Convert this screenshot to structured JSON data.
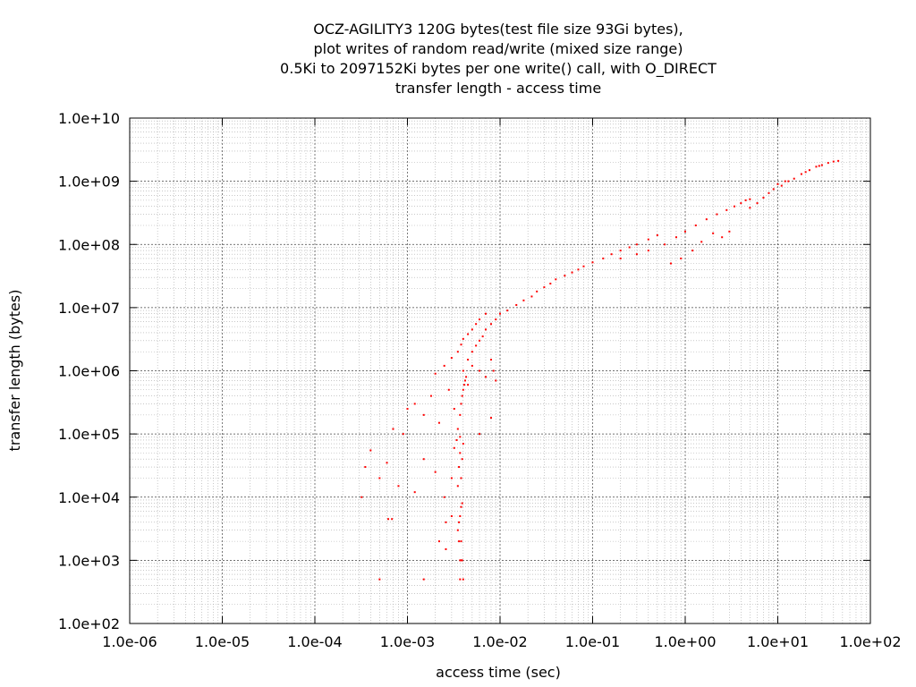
{
  "chart_data": {
    "type": "scatter",
    "title_lines": [
      "OCZ-AGILITY3 120G bytes(test file size 93Gi bytes),",
      "plot writes of random read/write (mixed size range)",
      "0.5Ki to 2097152Ki bytes per one write() call, with O_DIRECT",
      "transfer length - access time"
    ],
    "xlabel": "access time (sec)",
    "ylabel": "transfer length (bytes)",
    "xscale": "log",
    "yscale": "log",
    "xlim": [
      1e-06,
      100
    ],
    "ylim": [
      100,
      10000000000.0
    ],
    "x_ticks": [
      {
        "value": 1e-06,
        "label": "1.0e-06"
      },
      {
        "value": 1e-05,
        "label": "1.0e-05"
      },
      {
        "value": 0.0001,
        "label": "1.0e-04"
      },
      {
        "value": 0.001,
        "label": "1.0e-03"
      },
      {
        "value": 0.01,
        "label": "1.0e-02"
      },
      {
        "value": 0.1,
        "label": "1.0e-01"
      },
      {
        "value": 1,
        "label": "1.0e+00"
      },
      {
        "value": 10,
        "label": "1.0e+01"
      },
      {
        "value": 100,
        "label": "1.0e+02"
      }
    ],
    "y_ticks": [
      {
        "value": 100.0,
        "label": "1.0e+02"
      },
      {
        "value": 1000.0,
        "label": "1.0e+03"
      },
      {
        "value": 10000.0,
        "label": "1.0e+04"
      },
      {
        "value": 100000.0,
        "label": "1.0e+05"
      },
      {
        "value": 1000000.0,
        "label": "1.0e+06"
      },
      {
        "value": 10000000.0,
        "label": "1.0e+07"
      },
      {
        "value": 100000000.0,
        "label": "1.0e+08"
      },
      {
        "value": 1000000000.0,
        "label": "1.0e+09"
      },
      {
        "value": 10000000000.0,
        "label": "1.0e+10"
      }
    ],
    "grid": true,
    "legend": "none",
    "series": [
      {
        "color": "#ff0000",
        "marker": "dot",
        "points": [
          [
            0.0005,
            500
          ],
          [
            0.0015,
            500
          ],
          [
            0.0037,
            500
          ],
          [
            0.004,
            500
          ],
          [
            0.0037,
            1000
          ],
          [
            0.0038,
            1000
          ],
          [
            0.0039,
            1000
          ],
          [
            0.0036,
            2000
          ],
          [
            0.0038,
            2000
          ],
          [
            0.0022,
            2000
          ],
          [
            0.0026,
            1500
          ],
          [
            0.00062,
            4500
          ],
          [
            0.00068,
            4500
          ],
          [
            0.0026,
            4000
          ],
          [
            0.003,
            5000
          ],
          [
            0.0035,
            3000
          ],
          [
            0.0036,
            4000
          ],
          [
            0.0037,
            5000
          ],
          [
            0.0038,
            7000
          ],
          [
            0.0039,
            8000
          ],
          [
            0.00032,
            10000
          ],
          [
            0.00035,
            30000
          ],
          [
            0.0004,
            55000
          ],
          [
            0.0005,
            20000
          ],
          [
            0.0006,
            35000
          ],
          [
            0.0008,
            15000
          ],
          [
            0.0012,
            12000
          ],
          [
            0.0015,
            40000
          ],
          [
            0.002,
            25000
          ],
          [
            0.0025,
            10000
          ],
          [
            0.003,
            20000
          ],
          [
            0.0032,
            60000
          ],
          [
            0.0035,
            15000
          ],
          [
            0.0036,
            30000
          ],
          [
            0.0037,
            50000
          ],
          [
            0.0038,
            20000
          ],
          [
            0.0039,
            40000
          ],
          [
            0.004,
            70000
          ],
          [
            0.0034,
            80000
          ],
          [
            0.0037,
            90000
          ],
          [
            0.0007,
            120000
          ],
          [
            0.0009,
            100000
          ],
          [
            0.0012,
            300000
          ],
          [
            0.0015,
            200000
          ],
          [
            0.0018,
            400000
          ],
          [
            0.0022,
            150000
          ],
          [
            0.0028,
            500000
          ],
          [
            0.0032,
            250000
          ],
          [
            0.0035,
            120000
          ],
          [
            0.0037,
            200000
          ],
          [
            0.0038,
            300000
          ],
          [
            0.0039,
            400000
          ],
          [
            0.004,
            500000
          ],
          [
            0.0041,
            600000
          ],
          [
            0.0042,
            700000
          ],
          [
            0.0043,
            800000
          ],
          [
            0.006,
            100000
          ],
          [
            0.008,
            180000
          ],
          [
            0.001,
            250000
          ],
          [
            0.004,
            1000000
          ],
          [
            0.0045,
            1500000
          ],
          [
            0.005,
            2000000
          ],
          [
            0.0055,
            2500000
          ],
          [
            0.006,
            3000000
          ],
          [
            0.0065,
            3500000
          ],
          [
            0.007,
            4500000
          ],
          [
            0.008,
            5500000
          ],
          [
            0.009,
            6500000
          ],
          [
            0.01,
            8000000
          ],
          [
            0.002,
            900000
          ],
          [
            0.0025,
            1200000
          ],
          [
            0.003,
            1600000
          ],
          [
            0.0035,
            2000000
          ],
          [
            0.0038,
            2600000
          ],
          [
            0.004,
            3200000
          ],
          [
            0.0045,
            3800000
          ],
          [
            0.005,
            4500000
          ],
          [
            0.0055,
            5500000
          ],
          [
            0.006,
            6500000
          ],
          [
            0.007,
            8000000
          ],
          [
            0.005,
            1200000
          ],
          [
            0.006,
            1000000
          ],
          [
            0.007,
            800000
          ],
          [
            0.008,
            1500000
          ],
          [
            0.0085,
            1000000
          ],
          [
            0.009,
            700000
          ],
          [
            0.0045,
            600000
          ],
          [
            0.012,
            9000000
          ],
          [
            0.015,
            11000000
          ],
          [
            0.018,
            13000000
          ],
          [
            0.022,
            15000000
          ],
          [
            0.025,
            18000000
          ],
          [
            0.03,
            21000000
          ],
          [
            0.035,
            24000000
          ],
          [
            0.04,
            28000000
          ],
          [
            0.05,
            32000000
          ],
          [
            0.06,
            36000000
          ],
          [
            0.07,
            40000000
          ],
          [
            0.08,
            45000000
          ],
          [
            0.1,
            52000000
          ],
          [
            0.13,
            60000000
          ],
          [
            0.16,
            70000000
          ],
          [
            0.2,
            80000000
          ],
          [
            0.25,
            90000000
          ],
          [
            0.3,
            100000000
          ],
          [
            0.4,
            120000000
          ],
          [
            0.5,
            140000000
          ],
          [
            0.2,
            60000000
          ],
          [
            0.3,
            70000000
          ],
          [
            0.4,
            80000000
          ],
          [
            0.6,
            100000000
          ],
          [
            0.8,
            130000000
          ],
          [
            1.0,
            160000000
          ],
          [
            1.3,
            200000000
          ],
          [
            1.7,
            250000000
          ],
          [
            2.2,
            300000000
          ],
          [
            2.8,
            350000000
          ],
          [
            3.4,
            400000000
          ],
          [
            4.0,
            450000000
          ],
          [
            4.5,
            500000000
          ],
          [
            5.0,
            520000000
          ],
          [
            2.0,
            150000000
          ],
          [
            2.5,
            130000000
          ],
          [
            3.0,
            160000000
          ],
          [
            1.5,
            110000000
          ],
          [
            1.2,
            80000000
          ],
          [
            0.9,
            60000000
          ],
          [
            0.7,
            50000000
          ],
          [
            5.0,
            380000000
          ],
          [
            6.0,
            450000000
          ],
          [
            7.0,
            550000000
          ],
          [
            8.0,
            650000000
          ],
          [
            9.0,
            750000000
          ],
          [
            11.0,
            850000000
          ],
          [
            13.0,
            1000000000
          ],
          [
            15.0,
            1100000000
          ],
          [
            18.0,
            1300000000
          ],
          [
            22.0,
            1500000000
          ],
          [
            26.0,
            1700000000
          ],
          [
            30.0,
            1800000000
          ],
          [
            35.0,
            1950000000
          ],
          [
            40.0,
            2050000000
          ],
          [
            45.0,
            2100000000
          ],
          [
            10.0,
            900000000
          ],
          [
            12.0,
            1000000000
          ],
          [
            20.0,
            1400000000
          ],
          [
            28.0,
            1750000000
          ]
        ]
      }
    ]
  }
}
